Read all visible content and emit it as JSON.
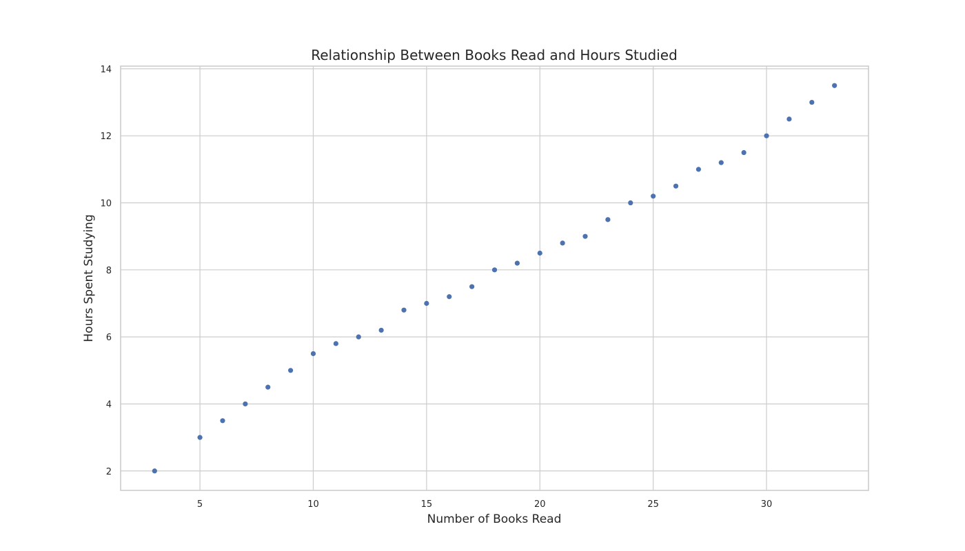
{
  "chart_data": {
    "type": "scatter",
    "title": "Relationship Between Books Read and Hours Studied",
    "xlabel": "Number of Books Read",
    "ylabel": "Hours Spent Studying",
    "xlim": [
      1.5,
      34.5
    ],
    "ylim": [
      1.42,
      14.08
    ],
    "x_ticks": [
      5,
      10,
      15,
      20,
      25,
      30
    ],
    "y_ticks": [
      2,
      4,
      6,
      8,
      10,
      12,
      14
    ],
    "grid": true,
    "marker_color": "#4c72b0",
    "x": [
      3,
      5,
      6,
      7,
      8,
      9,
      10,
      11,
      12,
      13,
      14,
      15,
      16,
      17,
      18,
      19,
      20,
      21,
      22,
      23,
      24,
      25,
      26,
      27,
      28,
      29,
      30,
      31,
      32,
      33
    ],
    "y": [
      2,
      3,
      3.5,
      4,
      4.5,
      5,
      5.5,
      5.8,
      6,
      6.2,
      6.8,
      7,
      7.2,
      7.5,
      8,
      8.2,
      8.5,
      8.8,
      9,
      9.5,
      10,
      10.2,
      10.5,
      11,
      11.2,
      11.5,
      12,
      12.5,
      13,
      13.5
    ]
  }
}
